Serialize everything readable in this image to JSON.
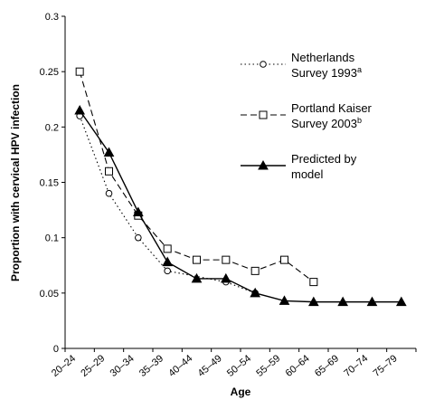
{
  "chart_data": {
    "type": "line",
    "title": "",
    "xlabel": "Age",
    "ylabel": "Proportion with cervical HPV infection",
    "categories": [
      "20–24",
      "25–29",
      "30–34",
      "35–39",
      "40–44",
      "45–49",
      "50–54",
      "55–59",
      "60–64",
      "65–69",
      "70–74",
      "75–79"
    ],
    "ylim": [
      0,
      0.3
    ],
    "yticks": [
      "0",
      "0.05",
      "0.1",
      "0.15",
      "0.2",
      "0.25",
      "0.3"
    ],
    "grid": false,
    "legend_position": "top-right",
    "series": [
      {
        "name_main": "Netherlands",
        "name_line2": "Survey 1993",
        "name_sup": "a",
        "line_style": "dotted",
        "marker": "circle",
        "points": [
          {
            "x": 0.5,
            "y": 0.21
          },
          {
            "x": 1.5,
            "y": 0.14
          },
          {
            "x": 2.5,
            "y": 0.1
          },
          {
            "x": 3.5,
            "y": 0.07
          },
          {
            "x": 5.5,
            "y": 0.06
          },
          {
            "x": 6.5,
            "y": 0.05
          }
        ]
      },
      {
        "name_main": "Portland Kaiser",
        "name_line2": "Survey 2003",
        "name_sup": "b",
        "line_style": "dashed",
        "marker": "square",
        "points": [
          {
            "x": 0.5,
            "y": 0.25
          },
          {
            "x": 1.5,
            "y": 0.16
          },
          {
            "x": 2.5,
            "y": 0.12
          },
          {
            "x": 3.5,
            "y": 0.09
          },
          {
            "x": 4.5,
            "y": 0.08
          },
          {
            "x": 5.5,
            "y": 0.08
          },
          {
            "x": 6.5,
            "y": 0.07
          },
          {
            "x": 7.5,
            "y": 0.08
          },
          {
            "x": 8.5,
            "y": 0.06
          }
        ]
      },
      {
        "name_main": "Predicted by",
        "name_line2": "model",
        "name_sup": "",
        "line_style": "solid",
        "marker": "triangle",
        "points": [
          {
            "x": 0.5,
            "y": 0.215
          },
          {
            "x": 1.5,
            "y": 0.177
          },
          {
            "x": 2.5,
            "y": 0.123
          },
          {
            "x": 3.5,
            "y": 0.078
          },
          {
            "x": 4.5,
            "y": 0.063
          },
          {
            "x": 5.5,
            "y": 0.063
          },
          {
            "x": 6.5,
            "y": 0.05
          },
          {
            "x": 7.5,
            "y": 0.043
          },
          {
            "x": 8.5,
            "y": 0.042
          },
          {
            "x": 9.5,
            "y": 0.042
          },
          {
            "x": 10.5,
            "y": 0.042
          },
          {
            "x": 11.5,
            "y": 0.042
          }
        ]
      }
    ]
  }
}
